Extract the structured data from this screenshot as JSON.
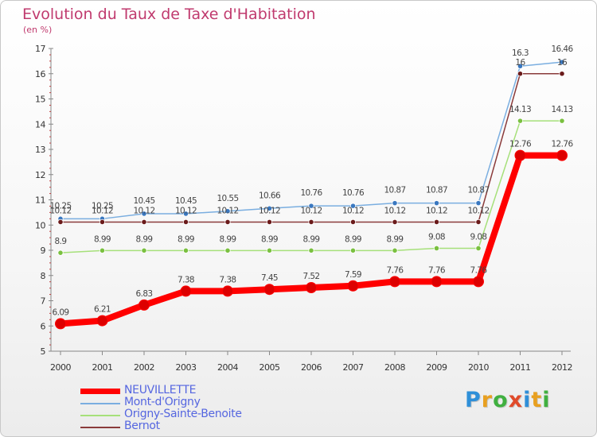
{
  "title": "Evolution du Taux de Taxe d'Habitation",
  "unit": "(en %)",
  "logo": {
    "text": "Proxiti",
    "letters": [
      {
        "ch": "P",
        "color": "#2f8fd8"
      },
      {
        "ch": "r",
        "color": "#e8a020"
      },
      {
        "ch": "o",
        "color": "#40b040"
      },
      {
        "ch": "x",
        "color": "#e04a2a"
      },
      {
        "ch": "i",
        "color": "#2f8fd8"
      },
      {
        "ch": "t",
        "color": "#e8a020"
      },
      {
        "ch": "i",
        "color": "#40b040"
      }
    ]
  },
  "chart_data": {
    "type": "line",
    "title": "Evolution du Taux de Taxe d'Habitation",
    "ylabel": "(en %)",
    "xlabel": "",
    "ylim": [
      5,
      17
    ],
    "yticks": [
      "5",
      "6",
      "7",
      "8",
      "9",
      "10",
      "11",
      "12",
      "13",
      "14",
      "15",
      "16",
      "17"
    ],
    "categories": [
      "2000",
      "2001",
      "2002",
      "2003",
      "2004",
      "2005",
      "2006",
      "2007",
      "2008",
      "2009",
      "2010",
      "2011",
      "2012"
    ],
    "series": [
      {
        "name": "NEUVILLETTE",
        "color": "#ff0000",
        "marker": "#dd0000",
        "values": [
          6.09,
          6.21,
          6.83,
          7.38,
          7.38,
          7.45,
          7.52,
          7.59,
          7.76,
          7.76,
          7.76,
          12.76,
          12.76
        ],
        "labels": [
          "6.09",
          "6.21",
          "6.83",
          "7.38",
          "7.38",
          "7.45",
          "7.52",
          "7.59",
          "7.76",
          "7.76",
          "7.76",
          "12.76",
          "12.76"
        ]
      },
      {
        "name": "Mont-d'Origny",
        "color": "#7aaee0",
        "marker": "#3a78c0",
        "values": [
          10.25,
          10.25,
          10.45,
          10.45,
          10.55,
          10.66,
          10.76,
          10.76,
          10.87,
          10.87,
          10.87,
          16.3,
          16.46
        ],
        "labels": [
          "10.25",
          "10.25",
          "10.45",
          "10.45",
          "10.55",
          "10.66",
          "10.76",
          "10.76",
          "10.87",
          "10.87",
          "10.87",
          "16.3",
          "16.46"
        ]
      },
      {
        "name": "Origny-Sainte-Benoite",
        "color": "#a6e07a",
        "marker": "#7ac040",
        "values": [
          8.9,
          8.99,
          8.99,
          8.99,
          8.99,
          8.99,
          8.99,
          8.99,
          8.99,
          9.08,
          9.08,
          14.13,
          14.13
        ],
        "labels": [
          "8.9",
          "8.99",
          "8.99",
          "8.99",
          "8.99",
          "8.99",
          "8.99",
          "8.99",
          "8.99",
          "9.08",
          "9.08",
          "14.13",
          "14.13"
        ]
      },
      {
        "name": "Bernot",
        "color": "#8a3a3a",
        "marker": "#6a1a1a",
        "values": [
          10.12,
          10.12,
          10.12,
          10.12,
          10.12,
          10.12,
          10.12,
          10.12,
          10.12,
          10.12,
          10.12,
          16,
          16
        ],
        "labels": [
          "10.12",
          "10.12",
          "10.12",
          "10.12",
          "10.12",
          "10.12",
          "10.12",
          "10.12",
          "10.12",
          "10.12",
          "10.12",
          "16",
          "16"
        ]
      }
    ]
  }
}
